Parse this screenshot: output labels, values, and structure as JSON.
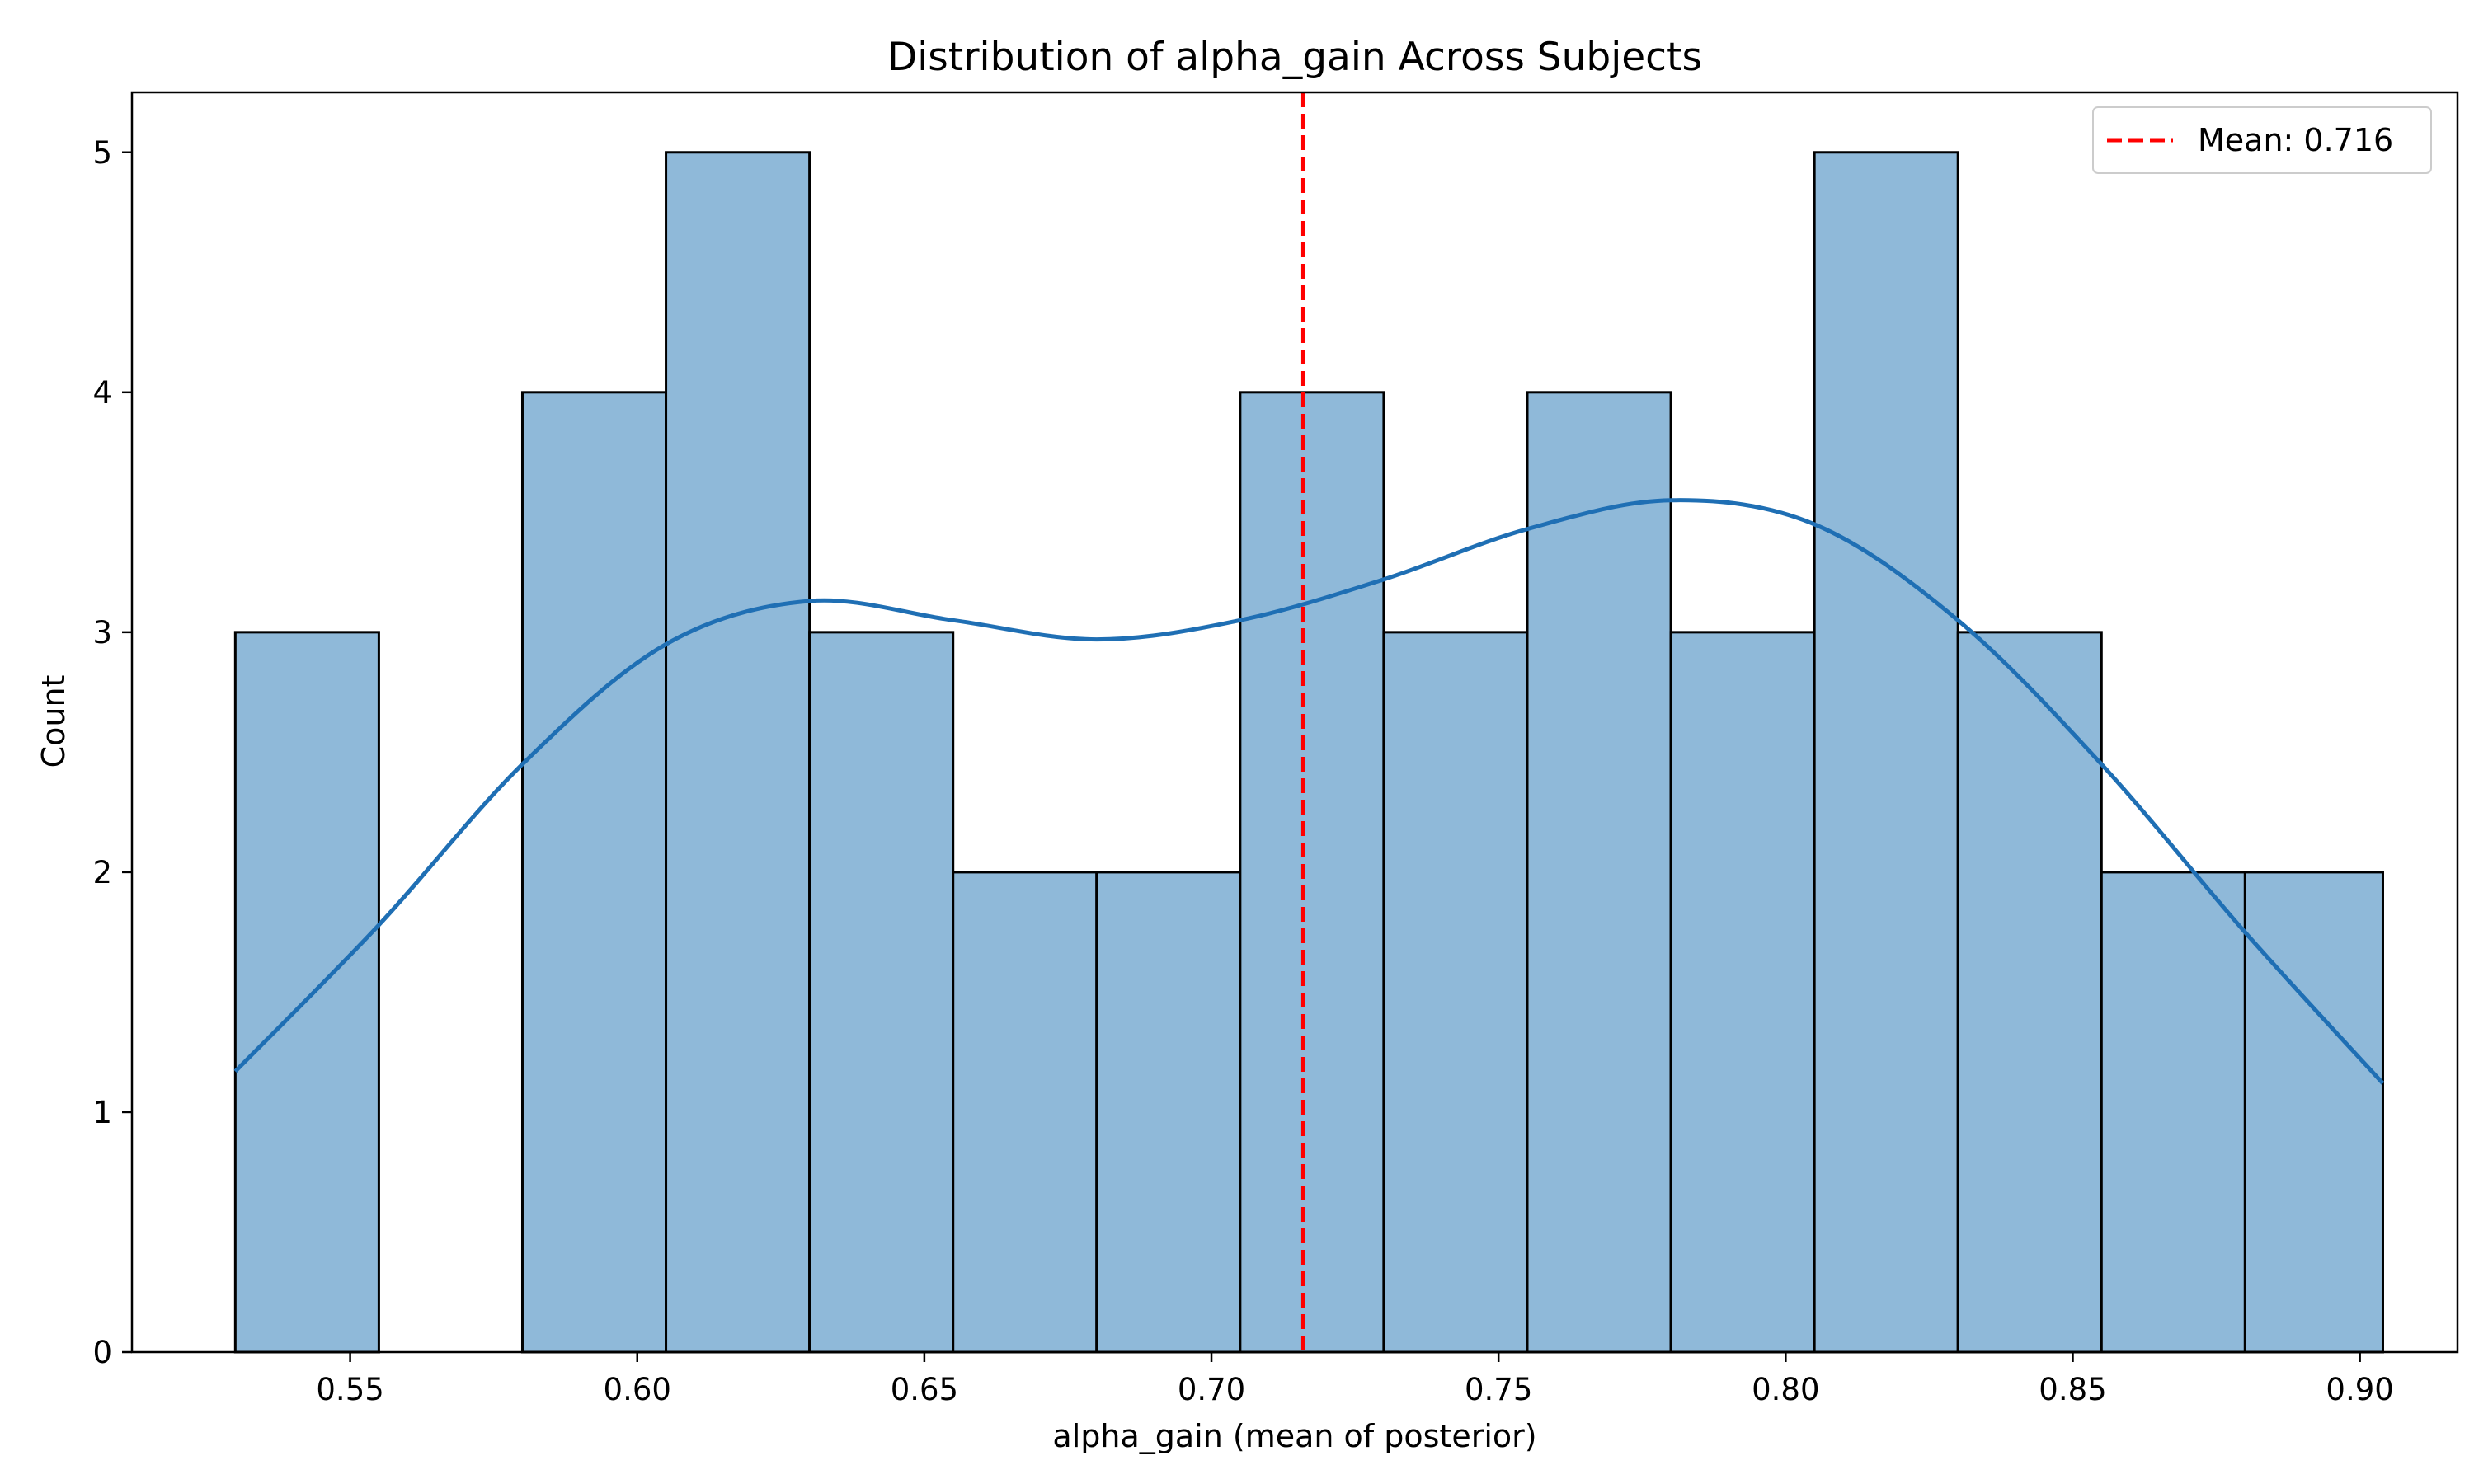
{
  "chart_data": {
    "type": "bar",
    "title": "Distribution of alpha_gain Across Subjects",
    "xlabel": "alpha_gain (mean of posterior)",
    "ylabel": "Count",
    "xlim": [
      0.512,
      0.917
    ],
    "ylim": [
      0,
      5.25
    ],
    "xticks": [
      "0.55",
      "0.60",
      "0.65",
      "0.70",
      "0.75",
      "0.80",
      "0.85",
      "0.90"
    ],
    "yticks": [
      "0",
      "1",
      "2",
      "3",
      "4",
      "5"
    ],
    "grid": false,
    "legend_position": "top-right",
    "bins": [
      {
        "x0": 0.53,
        "x1": 0.555,
        "count": 3
      },
      {
        "x0": 0.555,
        "x1": 0.58,
        "count": 0
      },
      {
        "x0": 0.58,
        "x1": 0.605,
        "count": 4
      },
      {
        "x0": 0.605,
        "x1": 0.63,
        "count": 5
      },
      {
        "x0": 0.63,
        "x1": 0.655,
        "count": 3
      },
      {
        "x0": 0.655,
        "x1": 0.68,
        "count": 2
      },
      {
        "x0": 0.68,
        "x1": 0.705,
        "count": 2
      },
      {
        "x0": 0.705,
        "x1": 0.73,
        "count": 4
      },
      {
        "x0": 0.73,
        "x1": 0.755,
        "count": 3
      },
      {
        "x0": 0.755,
        "x1": 0.78,
        "count": 4
      },
      {
        "x0": 0.78,
        "x1": 0.805,
        "count": 3
      },
      {
        "x0": 0.805,
        "x1": 0.83,
        "count": 5
      },
      {
        "x0": 0.83,
        "x1": 0.855,
        "count": 3
      },
      {
        "x0": 0.855,
        "x1": 0.88,
        "count": 2
      },
      {
        "x0": 0.88,
        "x1": 0.904,
        "count": 2
      }
    ],
    "kde": {
      "x": [
        0.53,
        0.555,
        0.58,
        0.605,
        0.63,
        0.655,
        0.68,
        0.705,
        0.73,
        0.755,
        0.78,
        0.805,
        0.83,
        0.855,
        0.88,
        0.904
      ],
      "y": [
        1.17,
        1.78,
        2.45,
        2.95,
        3.13,
        3.05,
        2.97,
        3.05,
        3.22,
        3.43,
        3.55,
        3.45,
        3.05,
        2.45,
        1.75,
        1.12
      ]
    },
    "mean_line": {
      "value": 0.716,
      "label": "Mean: 0.716"
    },
    "colors": {
      "bar_fill": "#8fb9d9",
      "bar_edge": "#000000",
      "kde_line": "#1f6fb4",
      "mean_line": "#ff0000"
    }
  }
}
